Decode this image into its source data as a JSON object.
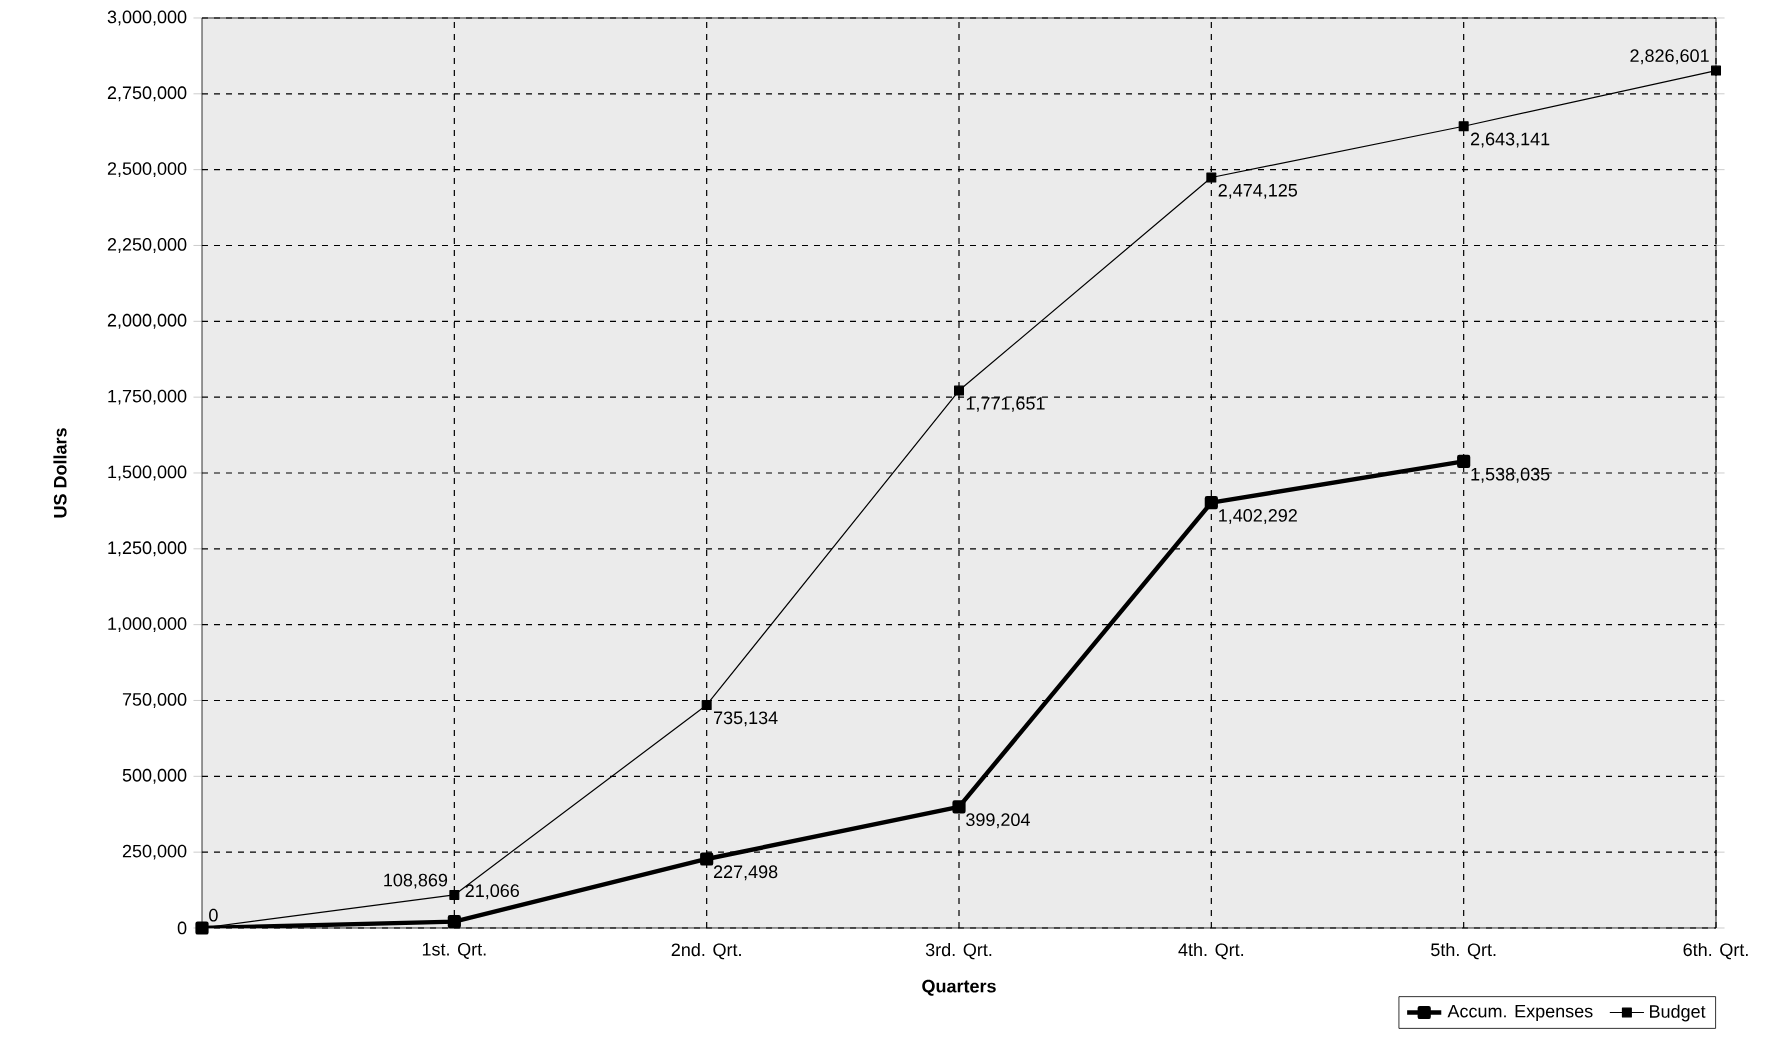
{
  "chart_data": {
    "type": "line",
    "xlabel": "Quarters",
    "ylabel": "US Dollars",
    "categories": [
      null,
      "1st. Qrt.",
      "2nd. Qrt.",
      "3rd. Qrt.",
      "4th. Qrt.",
      "5th. Qrt.",
      "6th. Qrt."
    ],
    "series": [
      {
        "name": "Accum. Expenses",
        "color": "#000000",
        "values": [
          0,
          21066,
          227498,
          399204,
          1402292,
          1538035,
          null
        ],
        "value_labels": [
          null,
          "21,066",
          "227,498",
          "399,204",
          "1,402,292",
          "1,538,035",
          null
        ]
      },
      {
        "name": "Budget",
        "color": "#000000",
        "values": [
          0,
          108869,
          735134,
          1771651,
          2474125,
          2643141,
          2826601
        ],
        "value_labels": [
          "0",
          "108,869",
          "735,134",
          "1,771,651",
          "2,474,125",
          "2,643,141",
          "2,826,601"
        ]
      }
    ],
    "ylim": [
      0,
      3000000
    ],
    "yticks": [
      {
        "value": 0,
        "label": "0"
      },
      {
        "value": 250000,
        "label": "250,000"
      },
      {
        "value": 500000,
        "label": "500,000"
      },
      {
        "value": 750000,
        "label": "750,000"
      },
      {
        "value": 1000000,
        "label": "1,000,000"
      },
      {
        "value": 1250000,
        "label": "1,250,000"
      },
      {
        "value": 1500000,
        "label": "1,500,000"
      },
      {
        "value": 1750000,
        "label": "1,750,000"
      },
      {
        "value": 2000000,
        "label": "2,000,000"
      },
      {
        "value": 2250000,
        "label": "2,250,000"
      },
      {
        "value": 2500000,
        "label": "2,500,000"
      },
      {
        "value": 2750000,
        "label": "2,750,000"
      },
      {
        "value": 3000000,
        "label": "3,000,000"
      }
    ],
    "grid": true,
    "legend": "bottom right",
    "marker": "square",
    "line_style": "solid"
  }
}
